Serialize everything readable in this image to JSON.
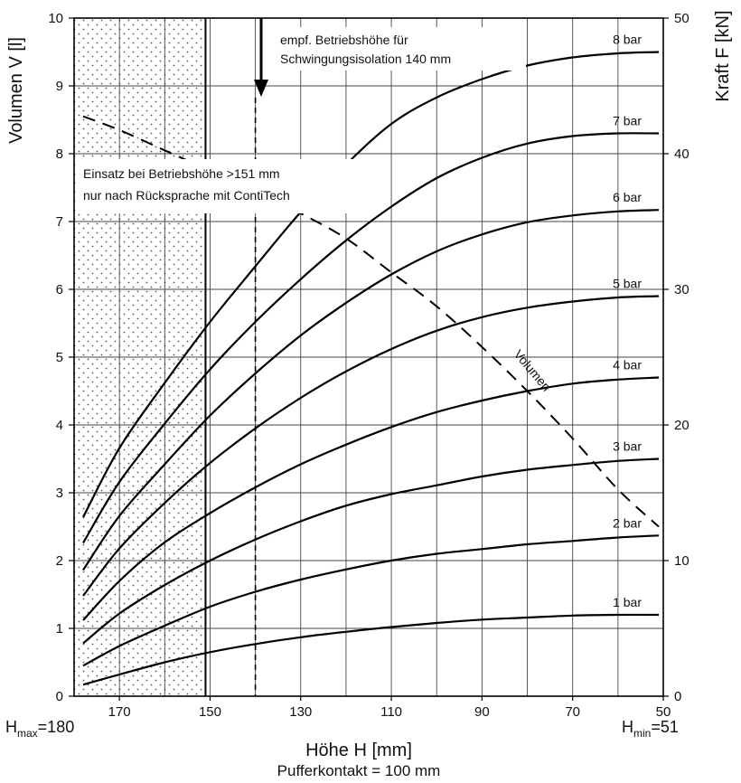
{
  "chart_data": {
    "type": "line",
    "xlabel": "Höhe H [mm]",
    "xlabel_sub": "Pufferkontakt = 100 mm",
    "ylabel_left": "Volumen V [l]",
    "ylabel_right": "Kraft F [kN]",
    "x_axis_reversed": true,
    "xlim": [
      180,
      50
    ],
    "ylim_left": [
      0,
      10
    ],
    "ylim_right": [
      0,
      50
    ],
    "x_ticks": [
      170,
      150,
      130,
      110,
      90,
      70,
      50
    ],
    "x_minor_grid": [
      180,
      160,
      140,
      120,
      100,
      80,
      60
    ],
    "y_ticks_left": [
      0,
      1,
      2,
      3,
      4,
      5,
      6,
      7,
      8,
      9,
      10
    ],
    "y_ticks_right": [
      0,
      10,
      20,
      30,
      40,
      50
    ],
    "grid": true,
    "h_max": {
      "base": "H",
      "sub": "max",
      "value": "=180"
    },
    "h_min": {
      "base": "H",
      "sub": "min",
      "value": "=51"
    },
    "shaded_region_x": [
      180,
      151
    ],
    "limit_line_x": 151,
    "recommended_height_x": 140,
    "annotations": {
      "recommended_line1": "empf. Betriebshöhe für",
      "recommended_line2": "Schwingungsisolation 140 mm",
      "usage_line1": "Einsatz bei Betriebshöhe >151 mm",
      "usage_line2": "nur nach Rücksprache mit ContiTech",
      "volume_label": "Volumen"
    },
    "force_series": [
      {
        "name": "1 bar",
        "x": [
          178,
          170,
          160,
          150,
          140,
          130,
          120,
          110,
          100,
          90,
          80,
          70,
          60,
          51
        ],
        "y": [
          0.85,
          1.6,
          2.5,
          3.25,
          3.85,
          4.35,
          4.75,
          5.1,
          5.4,
          5.65,
          5.8,
          5.95,
          6.0,
          6.0
        ]
      },
      {
        "name": "2 bar",
        "x": [
          178,
          170,
          160,
          150,
          140,
          130,
          120,
          110,
          100,
          90,
          80,
          70,
          60,
          51
        ],
        "y": [
          2.25,
          3.7,
          5.2,
          6.6,
          7.7,
          8.6,
          9.35,
          10.0,
          10.5,
          10.85,
          11.2,
          11.45,
          11.7,
          11.85
        ]
      },
      {
        "name": "3 bar",
        "x": [
          178,
          170,
          160,
          150,
          140,
          130,
          120,
          110,
          100,
          90,
          80,
          70,
          60,
          51
        ],
        "y": [
          3.9,
          6.1,
          8.2,
          10.0,
          11.55,
          12.9,
          14.05,
          14.9,
          15.55,
          16.2,
          16.7,
          17.05,
          17.35,
          17.5
        ]
      },
      {
        "name": "4 bar",
        "x": [
          178,
          170,
          160,
          150,
          140,
          130,
          120,
          110,
          100,
          90,
          80,
          70,
          60,
          51
        ],
        "y": [
          5.6,
          8.5,
          11.35,
          13.5,
          15.4,
          17.1,
          18.55,
          19.85,
          20.95,
          21.8,
          22.5,
          23.05,
          23.35,
          23.5
        ]
      },
      {
        "name": "5 bar",
        "x": [
          178,
          170,
          160,
          150,
          140,
          130,
          120,
          110,
          100,
          90,
          80,
          70,
          60,
          51
        ],
        "y": [
          7.4,
          10.9,
          14.25,
          17.2,
          19.75,
          22.0,
          23.95,
          25.6,
          26.95,
          27.95,
          28.65,
          29.1,
          29.4,
          29.5
        ]
      },
      {
        "name": "6 bar",
        "x": [
          178,
          170,
          160,
          150,
          140,
          130,
          120,
          110,
          100,
          90,
          80,
          70,
          60,
          51
        ],
        "y": [
          9.3,
          13.3,
          17.1,
          20.7,
          23.8,
          26.6,
          29.0,
          31.1,
          32.8,
          34.05,
          34.95,
          35.45,
          35.75,
          35.85
        ]
      },
      {
        "name": "7 bar",
        "x": [
          178,
          170,
          160,
          150,
          140,
          130,
          120,
          110,
          100,
          90,
          80,
          70,
          60,
          51
        ],
        "y": [
          11.3,
          15.8,
          20.1,
          24.1,
          27.6,
          30.75,
          33.6,
          36.1,
          38.2,
          39.7,
          40.75,
          41.3,
          41.5,
          41.5
        ]
      },
      {
        "name": "8 bar",
        "x": [
          178,
          170,
          160,
          150,
          140,
          130,
          120,
          110,
          100,
          90,
          80,
          70,
          60,
          51
        ],
        "y": [
          13.2,
          18.3,
          23.1,
          27.6,
          31.7,
          35.7,
          39.2,
          42.2,
          44.15,
          45.5,
          46.5,
          47.1,
          47.4,
          47.5
        ]
      }
    ],
    "volume_series": {
      "name": "Volumen",
      "x": [
        178,
        170,
        160,
        150,
        140,
        130,
        120,
        110,
        100,
        90,
        80,
        70,
        60,
        51
      ],
      "y": [
        8.55,
        8.35,
        8.05,
        7.75,
        7.45,
        7.12,
        6.75,
        6.25,
        5.75,
        5.15,
        4.5,
        3.8,
        3.05,
        2.5
      ]
    }
  }
}
